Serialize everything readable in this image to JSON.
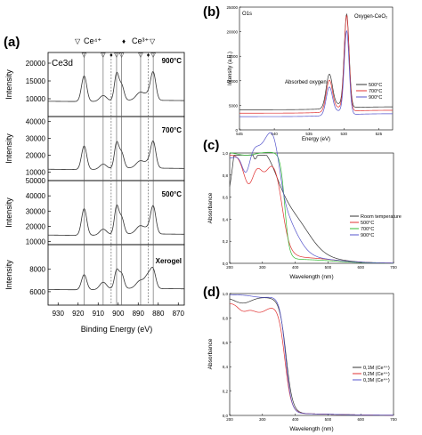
{
  "chart_data": [
    {
      "panel_label": "(a)",
      "type": "line",
      "title": "Ce3d",
      "xlabel": "Binding Energy (eV)",
      "ylabel": "Intensity",
      "x_reversed": true,
      "xlim": [
        935,
        867
      ],
      "xticks": [
        930,
        920,
        910,
        900,
        890,
        880,
        870
      ],
      "peak_labels": {
        "ce4": "Ce⁴⁺",
        "ce3": "Ce³⁺",
        "tri": "▽",
        "dia": "♦"
      },
      "sub_panels": [
        {
          "label": "900°C",
          "ylim": [
            5000,
            23000
          ],
          "yticks": [
            10000,
            15000,
            20000
          ]
        },
        {
          "label": "700°C",
          "ylim": [
            5000,
            43000
          ],
          "yticks": [
            10000,
            20000,
            30000,
            40000
          ]
        },
        {
          "label": "500°C",
          "ylim": [
            8000,
            50000
          ],
          "yticks": [
            10000,
            20000,
            30000,
            40000,
            50000
          ]
        },
        {
          "label": "Xerogel",
          "ylim": [
            4800,
            10200
          ],
          "yticks": [
            6000,
            8000
          ]
        }
      ]
    },
    {
      "panel_label": "(b)",
      "type": "line",
      "title": "O1s",
      "xlabel": "Energy (eV)",
      "ylabel": "Intensity (a.u.)",
      "x_reversed": true,
      "xlim": [
        545,
        523
      ],
      "xticks": [
        545,
        540,
        535,
        530,
        525
      ],
      "ylim": [
        0,
        25000
      ],
      "yticks": [
        0,
        5000,
        10000,
        15000,
        20000,
        25000
      ],
      "annotations": [
        "Oxygen-CeO₂",
        "Absorbed oxygen"
      ],
      "series": [
        {
          "name": "500°C",
          "color": "#333333"
        },
        {
          "name": "700°C",
          "color": "#e03030"
        },
        {
          "name": "900°C",
          "color": "#5555cc"
        }
      ]
    },
    {
      "panel_label": "(c)",
      "type": "line",
      "xlabel": "Wavelength (nm)",
      "ylabel": "Absorbance",
      "xlim": [
        200,
        700
      ],
      "xticks": [
        200,
        300,
        400,
        500,
        600,
        700
      ],
      "ylim": [
        0,
        1.0
      ],
      "yticks": [
        "0,0",
        "0,2",
        "0,4",
        "0,6",
        "0,8",
        "1,0"
      ],
      "series": [
        {
          "name": "Room temperature",
          "color": "#333333"
        },
        {
          "name": "500°C",
          "color": "#e03030"
        },
        {
          "name": "700°C",
          "color": "#33bb33"
        },
        {
          "name": "900°C",
          "color": "#5555cc"
        }
      ]
    },
    {
      "panel_label": "(d)",
      "type": "line",
      "xlabel": "Wavelength (nm)",
      "ylabel": "Absorbance",
      "xlim": [
        200,
        700
      ],
      "xticks": [
        200,
        300,
        400,
        500,
        600,
        700
      ],
      "ylim": [
        0,
        1.0
      ],
      "yticks": [
        "0,0",
        "0,2",
        "0,4",
        "0,6",
        "0,8",
        "1,0"
      ],
      "series": [
        {
          "name": "0,1M (Ce⁴⁺)",
          "color": "#333333"
        },
        {
          "name": "0,2M (Ce⁴⁺)",
          "color": "#e03030"
        },
        {
          "name": "0,3M (Ce⁴⁺)",
          "color": "#5555cc"
        }
      ]
    }
  ]
}
